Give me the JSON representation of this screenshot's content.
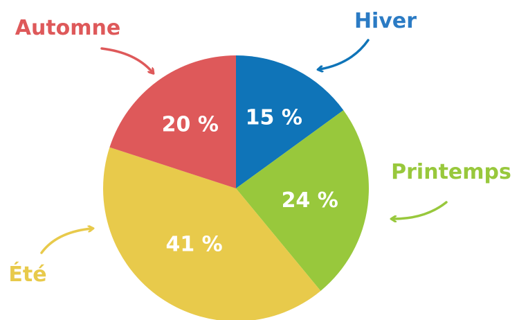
{
  "chart_data": {
    "type": "pie",
    "categories": [
      "Hiver",
      "Printemps",
      "Été",
      "Automne"
    ],
    "values": [
      15,
      24,
      41,
      20
    ],
    "value_labels": [
      "15 %",
      "24 %",
      "41 %",
      "20 %"
    ],
    "colors": [
      "#0f74b8",
      "#98c83c",
      "#e8ca4b",
      "#de595a"
    ],
    "start": "top, clockwise"
  }
}
